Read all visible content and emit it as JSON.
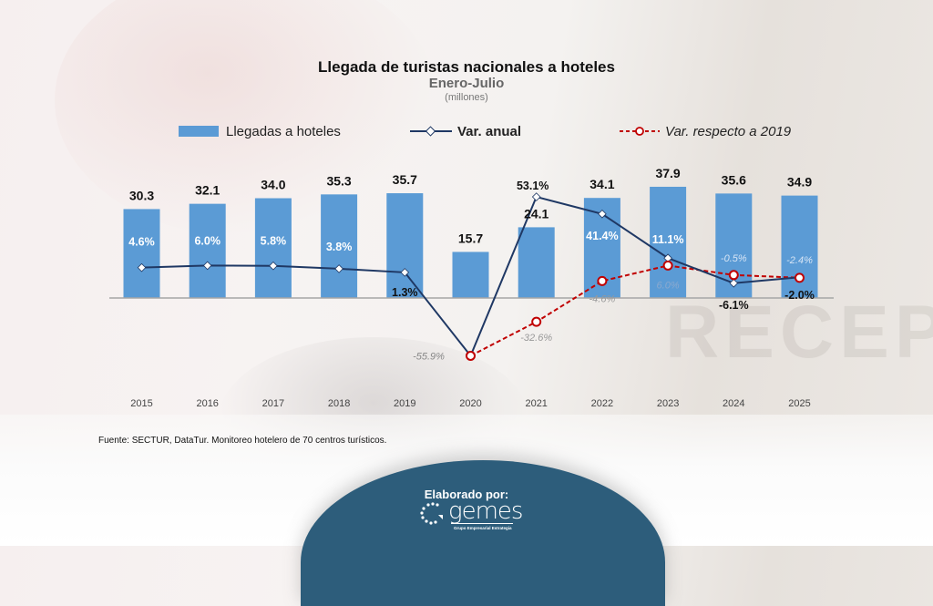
{
  "chart_data": {
    "type": "bar",
    "title": "Llegada de turistas nacionales a hoteles",
    "subtitle": "Enero-Julio",
    "units": "(millones)",
    "categories": [
      "2015",
      "2016",
      "2017",
      "2018",
      "2019",
      "2020",
      "2021",
      "2022",
      "2023",
      "2024",
      "2025"
    ],
    "series": [
      {
        "name": "Llegadas a hoteles",
        "type": "bar",
        "color": "#5b9bd5",
        "values": [
          30.3,
          32.1,
          34.0,
          35.3,
          35.7,
          15.7,
          24.1,
          34.1,
          37.9,
          35.6,
          34.9
        ],
        "labels": [
          "30.3",
          "32.1",
          "34.0",
          "35.3",
          "35.7",
          "15.7",
          "24.1",
          "34.1",
          "37.9",
          "35.6",
          "34.9"
        ]
      },
      {
        "name": "Var. anual",
        "type": "line",
        "color": "#1f3864",
        "values": [
          4.6,
          6.0,
          5.8,
          3.8,
          1.3,
          -55.9,
          53.1,
          41.4,
          11.1,
          -6.1,
          -2.0
        ],
        "labels": [
          "4.6%",
          "6.0%",
          "5.8%",
          "3.8%",
          "1.3%",
          "-55.9%",
          "53.1%",
          "41.4%",
          "11.1%",
          "-6.1%",
          "-2.0%"
        ]
      },
      {
        "name": "Var. respecto a 2019",
        "type": "line",
        "style": "dashed",
        "color": "#c00000",
        "values": [
          null,
          null,
          null,
          null,
          null,
          -55.9,
          -32.6,
          -4.6,
          6.0,
          -0.5,
          -2.4
        ],
        "labels": [
          "",
          "",
          "",
          "",
          "",
          "",
          "-32.6%",
          "-4.6%",
          "6.0%",
          "-0.5%",
          "-2.4%"
        ]
      }
    ],
    "xlabel": "",
    "ylabel": "",
    "grid": false,
    "legend": "top"
  },
  "source": "Fuente: SECTUR, DataTur. Monitoreo hotelero de 70 centros turísticos.",
  "credit": {
    "label": "Elaborado por:",
    "logo_name": "gemes",
    "logo_tagline": "Grupo Empresarial Estrategia"
  },
  "background_text": "RECEP"
}
